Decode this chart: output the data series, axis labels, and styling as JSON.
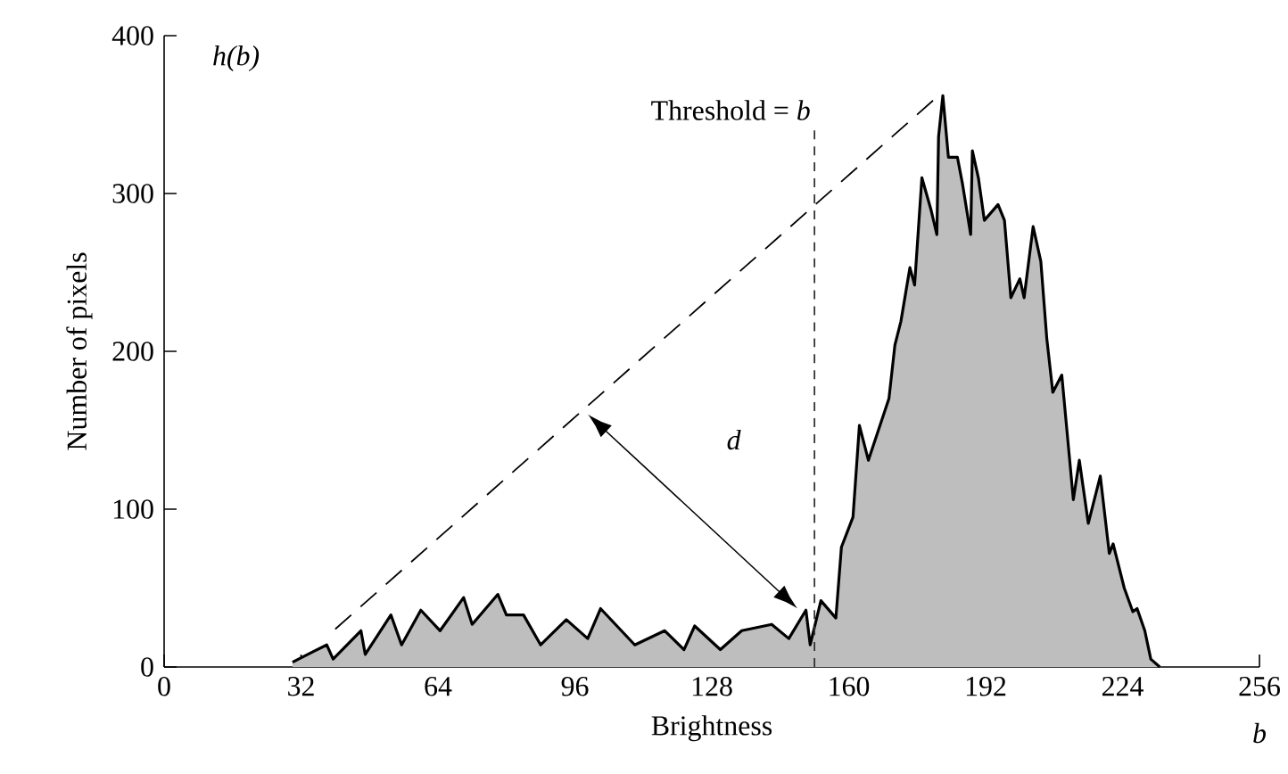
{
  "chart_data": {
    "type": "area",
    "xlabel": "Brightness",
    "ylabel": "Number of pixels",
    "xlim": [
      0,
      256
    ],
    "ylim": [
      0,
      400
    ],
    "xticks": [
      0,
      32,
      64,
      96,
      128,
      160,
      192,
      224,
      256
    ],
    "yticks": [
      0,
      100,
      200,
      300,
      400
    ],
    "series": [
      {
        "color": "#bebebe",
        "x": [
          30,
          35,
          38,
          39.5,
          46,
          47,
          53,
          55.5,
          60,
          64.5,
          70,
          72,
          78,
          80,
          84,
          88,
          94,
          99,
          102,
          110,
          117,
          121.5,
          124,
          130,
          135,
          142,
          146,
          150,
          151,
          153.5,
          157,
          158.3,
          161,
          162.5,
          164.6,
          169.4,
          170.8,
          172.2,
          174.3,
          175.4,
          177.1,
          179.2,
          180.6,
          181,
          182,
          183.3,
          185.4,
          186.6,
          188.5,
          188.9,
          190.3,
          191.7,
          194.9,
          196.4,
          197.9,
          200,
          201,
          203.1,
          204.9,
          206.3,
          207.7,
          209.8,
          212.5,
          213.9,
          216,
          218.8,
          220.9,
          221.8,
          224.4,
          226.4,
          227.4,
          229.2,
          230.6,
          232.7
        ],
        "values": [
          3,
          10,
          14,
          5,
          23,
          8,
          33,
          14,
          36,
          23,
          44,
          27,
          46,
          33,
          33,
          14,
          30,
          18,
          37,
          14,
          23,
          11,
          26,
          11,
          23,
          27,
          18,
          36,
          14,
          42,
          31,
          76,
          95,
          153,
          131,
          170,
          204,
          219,
          253,
          242,
          310,
          290,
          274,
          336,
          362,
          323,
          323,
          306,
          274,
          327,
          310,
          283,
          293,
          283,
          234,
          246,
          234,
          279,
          257,
          208,
          174,
          185,
          106,
          131,
          91,
          121,
          72,
          78,
          50,
          35,
          37,
          23,
          5,
          0
        ]
      },
      {
        "type": "line",
        "color": "#000000",
        "line_style": "dashed",
        "x": [
          40,
          181
        ],
        "values": [
          24,
          362
        ]
      }
    ],
    "ref_lines": [
      {
        "axis": "x",
        "value": 152,
        "label": "Threshold = *b*",
        "line_style": "dashed"
      }
    ],
    "annotations": [
      "h(b)",
      "b",
      "d"
    ]
  }
}
